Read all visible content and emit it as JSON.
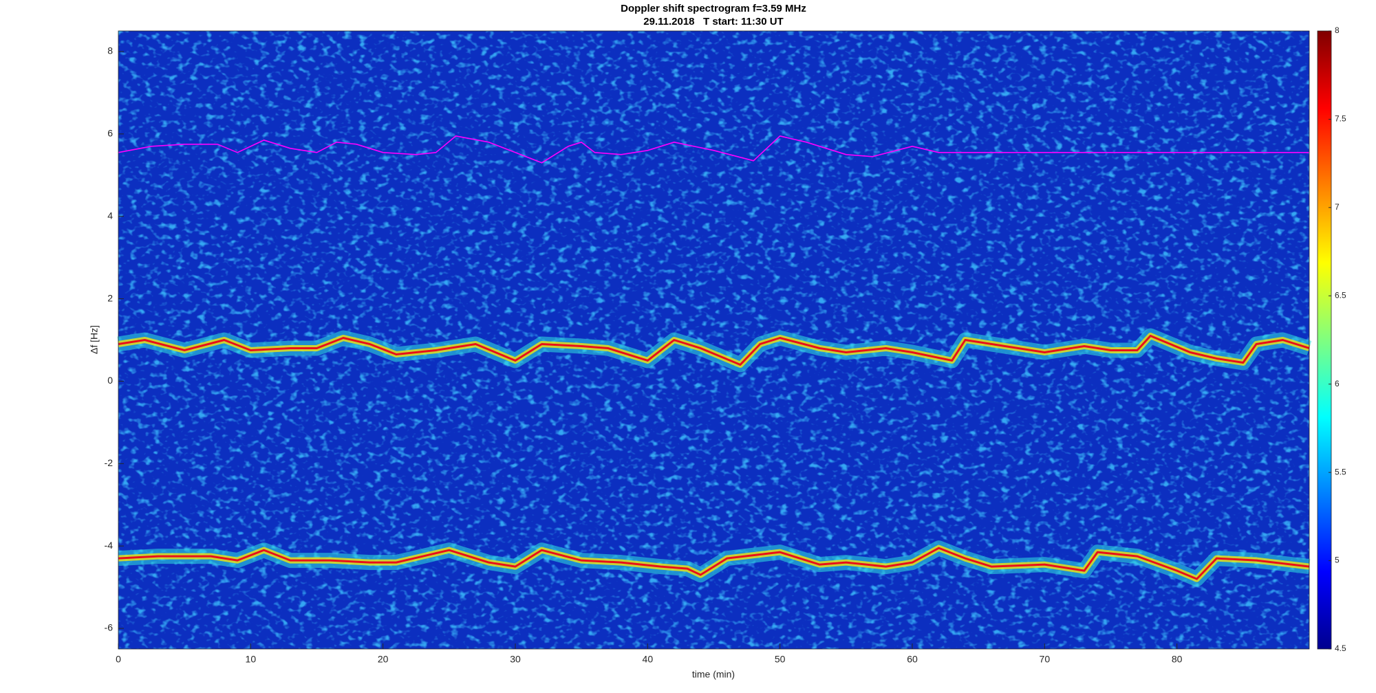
{
  "chart_data": {
    "type": "spectrogram",
    "title": "Doppler shift spectrogram f=3.59 MHz",
    "subtitle": "29.11.2018   T start: 11:30 UT",
    "xlabel": "time (min)",
    "ylabel": "Δf [Hz]",
    "xlim": [
      0,
      90
    ],
    "xticks": [
      0,
      10,
      20,
      30,
      40,
      50,
      60,
      70,
      80
    ],
    "ylim": [
      -6.5,
      8.5
    ],
    "yticks": [
      -6,
      -4,
      -2,
      0,
      2,
      4,
      6,
      8
    ],
    "colormap": "jet",
    "clim": [
      4.5,
      8
    ],
    "cticks": [
      4.5,
      5,
      5.5,
      6,
      6.5,
      7,
      7.5,
      8
    ],
    "series": [
      {
        "color": "#ff00ff",
        "x": [
          0,
          2.5,
          5,
          7.5,
          9,
          11,
          13,
          15,
          16.5,
          18,
          20,
          22.5,
          24,
          25.5,
          28,
          30,
          32,
          34,
          35,
          36,
          38,
          40,
          42,
          45,
          48,
          50,
          52,
          55,
          57,
          60,
          62,
          90
        ],
        "values": [
          5.55,
          5.7,
          5.75,
          5.75,
          5.55,
          5.85,
          5.65,
          5.55,
          5.8,
          5.75,
          5.55,
          5.5,
          5.55,
          5.95,
          5.8,
          5.55,
          5.3,
          5.7,
          5.8,
          5.55,
          5.5,
          5.6,
          5.8,
          5.6,
          5.35,
          5.95,
          5.8,
          5.5,
          5.45,
          5.7,
          5.55,
          5.55
        ]
      },
      {
        "color": "#e8101a",
        "x": [
          0,
          2,
          5,
          8,
          10,
          13,
          15,
          17,
          19,
          21,
          24,
          27,
          30,
          32,
          35,
          37,
          40,
          42,
          44,
          47,
          48.5,
          50,
          53,
          55,
          58,
          60,
          63,
          64,
          67,
          70,
          73,
          75,
          77,
          78,
          81,
          83,
          85,
          86,
          88,
          90
        ],
        "values": [
          0.9,
          1.0,
          0.75,
          1.0,
          0.75,
          0.8,
          0.8,
          1.05,
          0.9,
          0.65,
          0.75,
          0.9,
          0.5,
          0.9,
          0.85,
          0.8,
          0.5,
          1.0,
          0.8,
          0.4,
          0.9,
          1.05,
          0.8,
          0.7,
          0.8,
          0.7,
          0.5,
          1.0,
          0.85,
          0.7,
          0.85,
          0.75,
          0.75,
          1.1,
          0.7,
          0.55,
          0.45,
          0.9,
          1.0,
          0.8
        ]
      },
      {
        "color": "#e8101a",
        "x": [
          0,
          3,
          7,
          9,
          11,
          13,
          16,
          19,
          21,
          23,
          25,
          28,
          30,
          32,
          35,
          38,
          41,
          43,
          44,
          46,
          50,
          53,
          55,
          58,
          60,
          62,
          64,
          66,
          70,
          72,
          73,
          74,
          77,
          80,
          81.5,
          83,
          86,
          90
        ],
        "values": [
          -4.3,
          -4.25,
          -4.25,
          -4.35,
          -4.1,
          -4.35,
          -4.35,
          -4.4,
          -4.4,
          -4.25,
          -4.1,
          -4.4,
          -4.5,
          -4.1,
          -4.35,
          -4.4,
          -4.5,
          -4.55,
          -4.7,
          -4.3,
          -4.15,
          -4.45,
          -4.4,
          -4.5,
          -4.4,
          -4.05,
          -4.3,
          -4.5,
          -4.45,
          -4.55,
          -4.6,
          -4.15,
          -4.25,
          -4.6,
          -4.8,
          -4.3,
          -4.35,
          -4.5
        ]
      }
    ]
  }
}
